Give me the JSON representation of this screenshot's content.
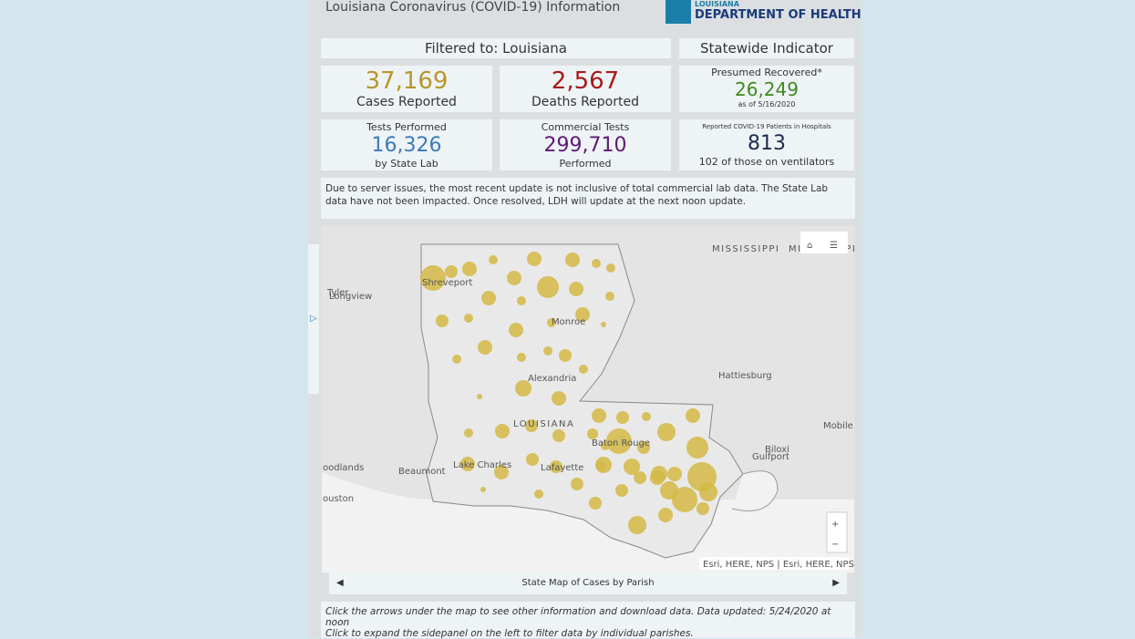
{
  "header": {
    "title": "Louisiana Coronavirus (COVID-19) Information",
    "logo_top": "LOUISIANA",
    "logo_main": "DEPARTMENT OF HEALTH"
  },
  "filter": "Filtered to: Louisiana",
  "indicator": "Statewide Indicator",
  "cards": {
    "cases": {
      "value": "37,169",
      "label": "Cases Reported"
    },
    "deaths": {
      "value": "2,567",
      "label": "Deaths Reported"
    },
    "recovered": {
      "title": "Presumed Recovered*",
      "value": "26,249",
      "note": "as of 5/16/2020"
    },
    "tests": {
      "title": "Tests Performed",
      "value": "16,326",
      "note": "by State Lab"
    },
    "commercial": {
      "title": "Commercial Tests",
      "value": "299,710",
      "note": "Performed"
    },
    "hospital": {
      "title": "Reported COVID-19 Patients in Hospitals",
      "value": "813",
      "note": "102 of those on ventilators"
    }
  },
  "notice": "Due to server issues, the most recent update is not inclusive of total commercial lab data. The State Lab data have not been impacted. Once resolved, LDH will update at the next noon update.",
  "map": {
    "labels": [
      "Longview",
      "Tyler",
      "Shreveport",
      "Monroe",
      "MISSISSIPPI",
      "MISSISSIPPI",
      "Alexandria",
      "LOUISIANA",
      "Hattiesburg",
      "Mobile",
      "Biloxi",
      "Gulfport",
      "Baton Rouge",
      "Lake Charles",
      "Lafayette",
      "Beaumont",
      "oodlands",
      "ouston"
    ],
    "attribution": "Esri, HERE, NPS | Esri, HERE, NPS",
    "caption": "State Map of Cases by Parish"
  },
  "footer": [
    "Click the arrows under the map to see other information and download data. Data updated: 5/24/2020 at noon",
    "Click to expand the sidepanel on the left to filter data by individual parishes."
  ]
}
